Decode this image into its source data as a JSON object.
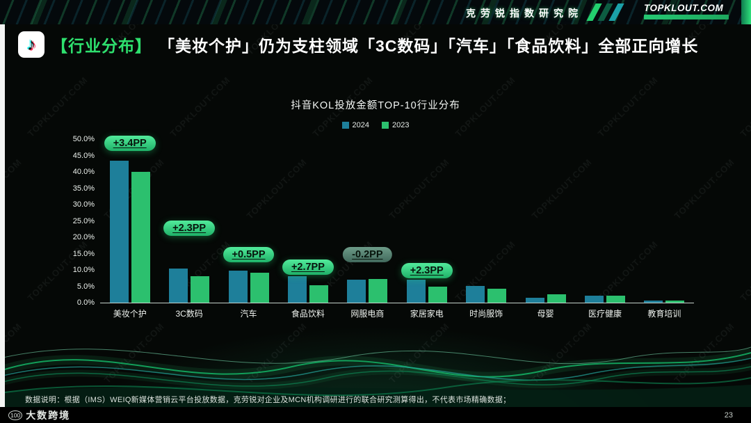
{
  "header": {
    "institute": "克劳锐指数研究院",
    "brand": "TOPKLOUT.COM"
  },
  "slide_title": {
    "icon_glyph": "♪",
    "tag": "【行业分布】",
    "text": "「美妆个护」仍为支柱领域「3C数码」「汽车」「食品饮料」全部正向增长"
  },
  "watermark": "TOPKLOUT.COM",
  "chart_data": {
    "type": "bar",
    "title": "抖音KOL投放金额TOP-10行业分布",
    "categories": [
      "美妆个护",
      "3C数码",
      "汽车",
      "食品饮料",
      "网服电商",
      "家居家电",
      "时尚服饰",
      "母婴",
      "医疗健康",
      "教育培训"
    ],
    "series": [
      {
        "name": "2024",
        "color": "#1e7f9a",
        "values": [
          43.4,
          10.4,
          9.7,
          8.1,
          7.0,
          7.1,
          5.1,
          1.4,
          2.1,
          0.6
        ]
      },
      {
        "name": "2023",
        "color": "#2cc06e",
        "values": [
          40.0,
          8.1,
          9.2,
          5.4,
          7.2,
          4.8,
          4.3,
          2.5,
          2.2,
          0.7
        ]
      }
    ],
    "value_unit": "%",
    "annotations": [
      {
        "category": "美妆个护",
        "label": "+3.4PP",
        "style": "green"
      },
      {
        "category": "3C数码",
        "label": "+2.3PP",
        "style": "green"
      },
      {
        "category": "汽车",
        "label": "+0.5PP",
        "style": "green"
      },
      {
        "category": "食品饮料",
        "label": "+2.7PP",
        "style": "green"
      },
      {
        "category": "网服电商",
        "label": "-0.2PP",
        "style": "dark"
      },
      {
        "category": "家居家电",
        "label": "+2.3PP",
        "style": "green"
      }
    ],
    "ylim": [
      0,
      50
    ],
    "yticks": [
      "50.0%",
      "45.0%",
      "40.0%",
      "35.0%",
      "30.0%",
      "25.0%",
      "20.0%",
      "15.0%",
      "10.0%",
      "5.0%",
      "0.0%"
    ],
    "legend_position": "top",
    "grid": false
  },
  "footer": {
    "note": "数据说明：根据（IMS）WEIQ新媒体营销云平台投放数据，克劳锐对企业及MCN机构调研进行的联合研究测算得出，不代表市场精确数据；",
    "logo_icon": "100",
    "logo_text": "大数跨境",
    "page": "23"
  }
}
